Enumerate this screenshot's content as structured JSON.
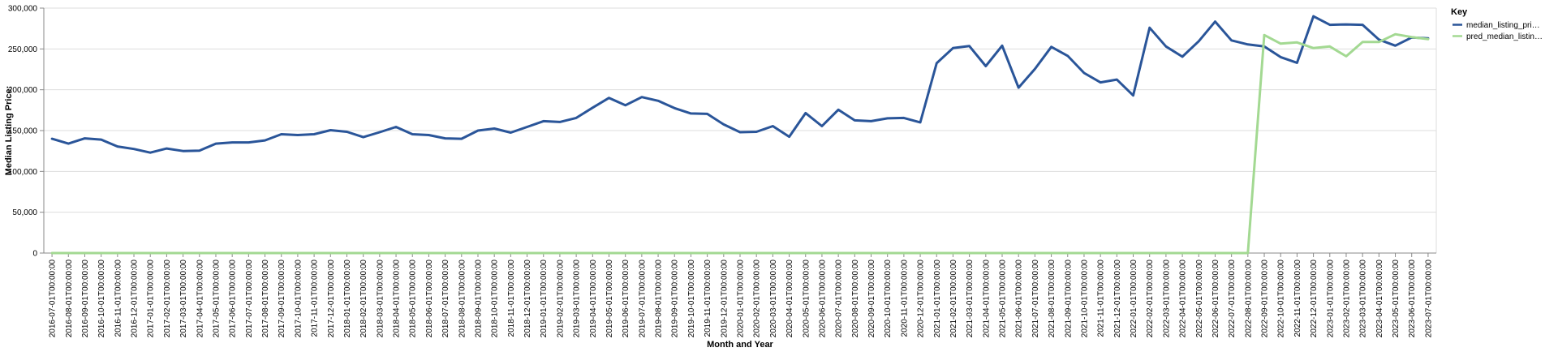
{
  "chart_data": {
    "type": "line",
    "xlabel": "Month and Year",
    "ylabel": "Median Listing Price:",
    "ylim": [
      0,
      300000
    ],
    "y_ticks": [
      "0",
      "50,000",
      "100,000",
      "150,000",
      "200,000",
      "250,000",
      "300,000"
    ],
    "grid": true,
    "legend_title": "Key",
    "legend_placement": "right",
    "x": [
      "2016-07-01T00:00:00",
      "2016-08-01T00:00:00",
      "2016-09-01T00:00:00",
      "2016-10-01T00:00:00",
      "2016-11-01T00:00:00",
      "2016-12-01T00:00:00",
      "2017-01-01T00:00:00",
      "2017-02-01T00:00:00",
      "2017-03-01T00:00:00",
      "2017-04-01T00:00:00",
      "2017-05-01T00:00:00",
      "2017-06-01T00:00:00",
      "2017-07-01T00:00:00",
      "2017-08-01T00:00:00",
      "2017-09-01T00:00:00",
      "2017-10-01T00:00:00",
      "2017-11-01T00:00:00",
      "2017-12-01T00:00:00",
      "2018-01-01T00:00:00",
      "2018-02-01T00:00:00",
      "2018-03-01T00:00:00",
      "2018-04-01T00:00:00",
      "2018-05-01T00:00:00",
      "2018-06-01T00:00:00",
      "2018-07-01T00:00:00",
      "2018-08-01T00:00:00",
      "2018-09-01T00:00:00",
      "2018-10-01T00:00:00",
      "2018-11-01T00:00:00",
      "2018-12-01T00:00:00",
      "2019-01-01T00:00:00",
      "2019-02-01T00:00:00",
      "2019-03-01T00:00:00",
      "2019-04-01T00:00:00",
      "2019-05-01T00:00:00",
      "2019-06-01T00:00:00",
      "2019-07-01T00:00:00",
      "2019-08-01T00:00:00",
      "2019-09-01T00:00:00",
      "2019-10-01T00:00:00",
      "2019-11-01T00:00:00",
      "2019-12-01T00:00:00",
      "2020-01-01T00:00:00",
      "2020-02-01T00:00:00",
      "2020-03-01T00:00:00",
      "2020-04-01T00:00:00",
      "2020-05-01T00:00:00",
      "2020-06-01T00:00:00",
      "2020-07-01T00:00:00",
      "2020-08-01T00:00:00",
      "2020-09-01T00:00:00",
      "2020-10-01T00:00:00",
      "2020-11-01T00:00:00",
      "2020-12-01T00:00:00",
      "2021-01-01T00:00:00",
      "2021-02-01T00:00:00",
      "2021-03-01T00:00:00",
      "2021-04-01T00:00:00",
      "2021-05-01T00:00:00",
      "2021-06-01T00:00:00",
      "2021-07-01T00:00:00",
      "2021-08-01T00:00:00",
      "2021-09-01T00:00:00",
      "2021-10-01T00:00:00",
      "2021-11-01T00:00:00",
      "2021-12-01T00:00:00",
      "2022-01-01T00:00:00",
      "2022-02-01T00:00:00",
      "2022-03-01T00:00:00",
      "2022-04-01T00:00:00",
      "2022-05-01T00:00:00",
      "2022-06-01T00:00:00",
      "2022-07-01T00:00:00",
      "2022-08-01T00:00:00",
      "2022-09-01T00:00:00",
      "2022-10-01T00:00:00",
      "2022-11-01T00:00:00",
      "2022-12-01T00:00:00",
      "2023-01-01T00:00:00",
      "2023-02-01T00:00:00",
      "2023-03-01T00:00:00",
      "2023-04-01T00:00:00",
      "2023-05-01T00:00:00",
      "2023-06-01T00:00:00",
      "2023-07-01T00:00:00"
    ],
    "series": [
      {
        "name": "median_listing_pri…",
        "color": "#2a5599",
        "values": [
          140000,
          134000,
          140500,
          139000,
          130500,
          127500,
          123000,
          128000,
          125000,
          125500,
          134000,
          135500,
          135500,
          138000,
          145500,
          144500,
          145500,
          150500,
          148500,
          142000,
          148000,
          154500,
          145500,
          144500,
          140500,
          140000,
          150000,
          152500,
          147500,
          154500,
          161500,
          160500,
          165500,
          178000,
          190000,
          181000,
          191000,
          186500,
          177500,
          171000,
          170500,
          157500,
          148000,
          148500,
          155500,
          142500,
          171500,
          155500,
          175500,
          162500,
          161500,
          165000,
          165500,
          160000,
          232500,
          251000,
          253500,
          229000,
          254000,
          202500,
          225500,
          252500,
          241500,
          220500,
          209000,
          212500,
          193000,
          276000,
          253000,
          240500,
          259500,
          283500,
          260500,
          255500,
          253000,
          240000,
          233000,
          290000,
          279500,
          280000,
          279500,
          261500,
          254000,
          264000,
          263000
        ]
      },
      {
        "name": "pred_median_listin…",
        "color": "#a3d992",
        "values": [
          0,
          0,
          0,
          0,
          0,
          0,
          0,
          0,
          0,
          0,
          0,
          0,
          0,
          0,
          0,
          0,
          0,
          0,
          0,
          0,
          0,
          0,
          0,
          0,
          0,
          0,
          0,
          0,
          0,
          0,
          0,
          0,
          0,
          0,
          0,
          0,
          0,
          0,
          0,
          0,
          0,
          0,
          0,
          0,
          0,
          0,
          0,
          0,
          0,
          0,
          0,
          0,
          0,
          0,
          0,
          0,
          0,
          0,
          0,
          0,
          0,
          0,
          0,
          0,
          0,
          0,
          0,
          0,
          0,
          0,
          0,
          0,
          0,
          0,
          267000,
          256500,
          258000,
          251000,
          253000,
          241000,
          258500,
          258500,
          268000,
          264500,
          262000
        ]
      }
    ]
  }
}
